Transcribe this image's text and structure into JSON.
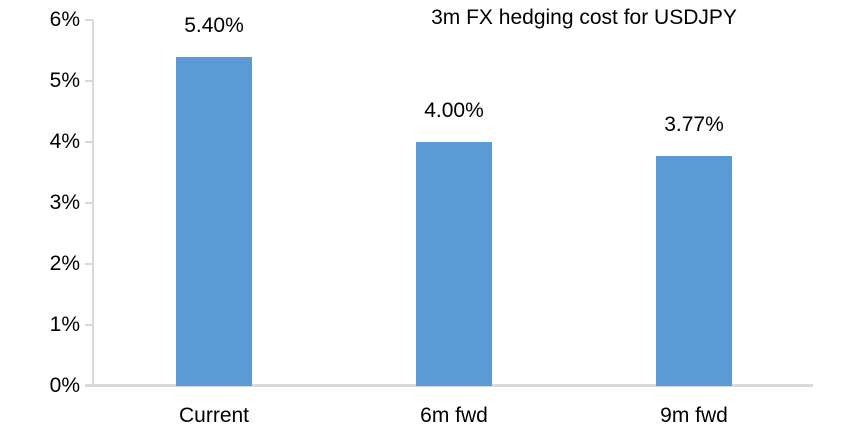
{
  "chart_data": {
    "type": "bar",
    "title": "3m FX hedging cost for USDJPY",
    "categories": [
      "Current",
      "6m fwd",
      "9m fwd"
    ],
    "values": [
      5.4,
      4.0,
      3.77
    ],
    "data_labels": [
      "5.40%",
      "4.00%",
      "3.77%"
    ],
    "xlabel": "",
    "ylabel": "",
    "ylim": [
      0,
      6
    ],
    "ytick_step": 1,
    "ytick_labels": [
      "0%",
      "1%",
      "2%",
      "3%",
      "4%",
      "5%",
      "6%"
    ],
    "grid": false,
    "legend": "none",
    "colors": {
      "bar": "#5B9BD5",
      "axis": "#D9D9D9",
      "text": "#000000",
      "background": "#FFFFFF"
    }
  }
}
